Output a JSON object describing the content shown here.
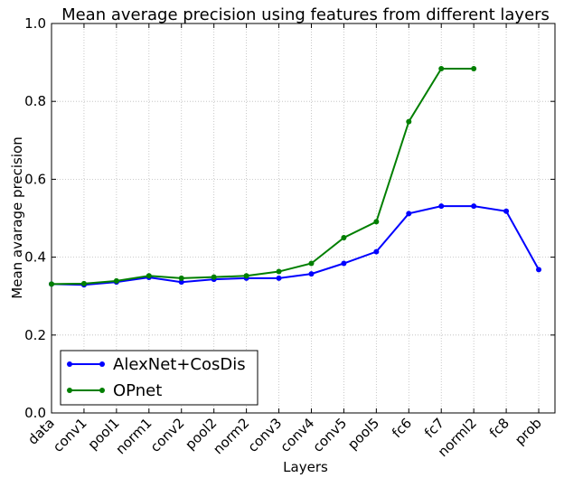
{
  "chart_data": {
    "type": "line",
    "title": "Mean average precision using features from different layers",
    "xlabel": "Layers",
    "ylabel": "Mean avarage precision",
    "categories": [
      "data",
      "conv1",
      "pool1",
      "norm1",
      "conv2",
      "pool2",
      "norm2",
      "conv3",
      "conv4",
      "conv5",
      "pool5",
      "fc6",
      "fc7",
      "norml2",
      "fc8",
      "prob"
    ],
    "series": [
      {
        "name": "AlexNet+CosDis",
        "color": "#0000ff",
        "values": [
          0.331,
          0.329,
          0.336,
          0.348,
          0.336,
          0.343,
          0.346,
          0.346,
          0.357,
          0.384,
          0.414,
          0.512,
          0.531,
          0.531,
          0.518,
          0.368
        ]
      },
      {
        "name": "OPnet",
        "color": "#007f00",
        "values": [
          0.331,
          0.332,
          0.339,
          0.352,
          0.346,
          0.349,
          0.352,
          0.363,
          0.384,
          0.45,
          0.491,
          0.748,
          0.884,
          0.884,
          null,
          null
        ]
      }
    ],
    "ylim": [
      0,
      1
    ],
    "yticks": [
      {
        "value": 0,
        "label": "0.0"
      },
      0.2,
      0.4,
      0.6,
      0.8,
      {
        "value": 1,
        "label": "1.0"
      }
    ],
    "grid": true,
    "legend": "lower left"
  }
}
